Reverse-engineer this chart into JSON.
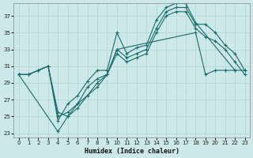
{
  "xlabel": "Humidex (Indice chaleur)",
  "bg_color": "#cce8e8",
  "grid_color": "#b0d4d4",
  "line_color": "#1a6b6b",
  "xlim": [
    -0.5,
    23.5
  ],
  "ylim": [
    22.5,
    38.5
  ],
  "xticks": [
    0,
    1,
    2,
    3,
    4,
    5,
    6,
    7,
    8,
    9,
    10,
    11,
    12,
    13,
    14,
    15,
    16,
    17,
    18,
    19,
    20,
    21,
    22,
    23
  ],
  "yticks": [
    23,
    25,
    27,
    29,
    31,
    33,
    35,
    37
  ],
  "line1": {
    "x": [
      0,
      1,
      2,
      3,
      4,
      5,
      6,
      7,
      8,
      9,
      10,
      11,
      12,
      13,
      14,
      15,
      16,
      17,
      18,
      22
    ],
    "y": [
      30,
      30,
      30.5,
      31,
      24.5,
      26.5,
      27.5,
      29.2,
      30.5,
      30.5,
      35,
      32.5,
      33.2,
      33.5,
      36.5,
      38,
      38.5,
      38.5,
      36.2,
      30.5
    ]
  },
  "line2": {
    "x": [
      0,
      1,
      2,
      3,
      4,
      5,
      6,
      7,
      8,
      9,
      10,
      11,
      12,
      13,
      14,
      15,
      16,
      17,
      18,
      19,
      20,
      21,
      22,
      23
    ],
    "y": [
      30,
      30,
      30.5,
      31,
      25,
      25.5,
      26.5,
      28.5,
      29.5,
      30,
      33,
      32,
      32.5,
      33,
      35.5,
      37.5,
      38,
      38,
      36,
      36,
      35,
      33.5,
      32.5,
      30.5
    ]
  },
  "line3": {
    "x": [
      0,
      1,
      2,
      3,
      4,
      5,
      6,
      7,
      8,
      9,
      10,
      11,
      12,
      13,
      14,
      15,
      16,
      17,
      18,
      19,
      20,
      21,
      22,
      23
    ],
    "y": [
      30,
      30,
      30.5,
      31,
      25.5,
      25,
      26,
      27.5,
      29,
      30,
      32.5,
      31.5,
      32,
      32.5,
      35,
      37,
      37.5,
      37.5,
      35.5,
      34.5,
      34,
      33,
      31.5,
      30
    ]
  },
  "line4": {
    "x": [
      0,
      4,
      5,
      6,
      7,
      8,
      9,
      10,
      18,
      19,
      20,
      21,
      22,
      23
    ],
    "y": [
      30,
      23.2,
      25,
      26.5,
      27.5,
      28.5,
      30,
      33,
      35,
      30,
      30.5,
      30.5,
      30.5,
      30.5
    ]
  }
}
